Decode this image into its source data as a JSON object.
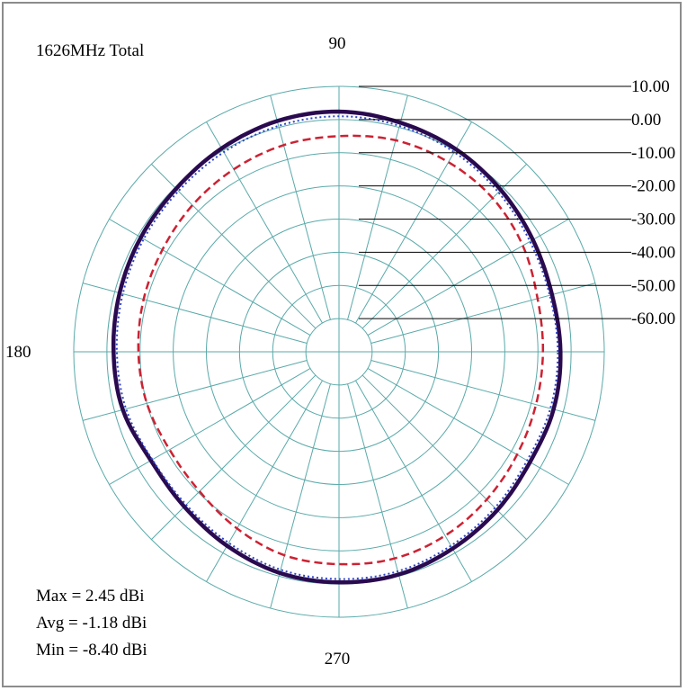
{
  "chart_data": {
    "type": "polar",
    "title": "1626MHz  Total",
    "angle_labels": {
      "top": "90",
      "left": "180",
      "bottom": "270"
    },
    "radial_unit": "dBi",
    "radial_ticks": [
      "10.00",
      "0.00",
      "-10.00",
      "-20.00",
      "-30.00",
      "-40.00",
      "-50.00",
      "-60.00"
    ],
    "radial_range": [
      -70,
      10
    ],
    "angle_grid_step_deg": 15,
    "grid": true,
    "series": [
      {
        "style": "solid-thick",
        "color": "#2a0a4f",
        "angles_deg": [
          0,
          15,
          30,
          45,
          60,
          75,
          90,
          105,
          120,
          135,
          150,
          165,
          180,
          195,
          210,
          225,
          240,
          255,
          270,
          285,
          300,
          315,
          330,
          345
        ],
        "values_dbi": [
          -3.2,
          -3.5,
          -2.5,
          -1.0,
          0.5,
          1.5,
          2.4,
          2.0,
          0.8,
          -0.5,
          -1.0,
          -1.5,
          -2.0,
          -2.5,
          -4.5,
          -4.0,
          -2.5,
          -1.0,
          -0.5,
          -0.5,
          -1.5,
          -2.5,
          -3.5,
          -3.0
        ]
      },
      {
        "style": "dotted",
        "color": "#2c43c8",
        "angles_deg": [
          0,
          15,
          30,
          45,
          60,
          75,
          90,
          105,
          120,
          135,
          150,
          165,
          180,
          195,
          210,
          225,
          240,
          255,
          270,
          285,
          300,
          315,
          330,
          345
        ],
        "values_dbi": [
          -4.0,
          -4.2,
          -3.5,
          -2.0,
          -0.5,
          0.5,
          1.0,
          0.5,
          -0.5,
          -1.5,
          -2.0,
          -2.5,
          -3.0,
          -3.5,
          -5.0,
          -4.8,
          -3.5,
          -2.0,
          -1.5,
          -1.5,
          -2.5,
          -3.5,
          -4.5,
          -4.0
        ]
      },
      {
        "style": "dashed",
        "color": "#cc2233",
        "angles_deg": [
          0,
          15,
          30,
          45,
          60,
          75,
          90,
          105,
          120,
          135,
          150,
          165,
          180,
          195,
          210,
          225,
          240,
          255,
          270,
          285,
          300,
          315,
          330,
          345
        ],
        "values_dbi": [
          -8.5,
          -8.0,
          -6.0,
          -4.5,
          -4.0,
          -4.0,
          -5.0,
          -5.5,
          -6.5,
          -7.5,
          -8.5,
          -9.0,
          -9.5,
          -10.0,
          -11.0,
          -10.5,
          -8.5,
          -6.5,
          -6.0,
          -5.5,
          -6.0,
          -7.0,
          -8.0,
          -8.5
        ]
      }
    ]
  },
  "stats": {
    "max": "Max = 2.45 dBi",
    "avg": "Avg =  -1.18 dBi",
    "min": "Min =  -8.40 dBi",
    "max_color": "#b8202a",
    "text_color": "#000000"
  }
}
